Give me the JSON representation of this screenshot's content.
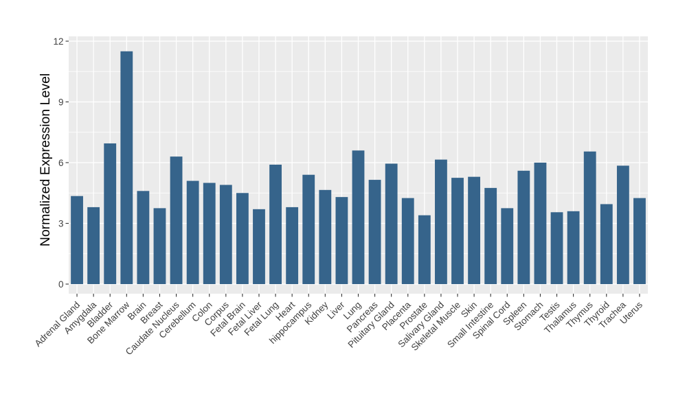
{
  "figure": {
    "background": "#FFFFFF"
  },
  "chart_data": {
    "type": "bar",
    "title": "",
    "xlabel": "",
    "ylabel": "Normalized Expression Level",
    "categories": [
      "Adrenal Gland",
      "Amygdala",
      "Bladder",
      "Bone Marrow",
      "Brain",
      "Breast",
      "Caudate Nucleus",
      "Cerebellum",
      "Colon",
      "Corpus",
      "Fetal Brain",
      "Fetal Liver",
      "Fetal Lung",
      "Heart",
      "hippocampus",
      "Kidney",
      "Liver",
      "Lung",
      "Pancreas",
      "Pituitary Gland",
      "Placenta",
      "Prostate",
      "Salivary Gland",
      "Skeletal Muscle",
      "Skin",
      "Small Intestine",
      "Spinal Cord",
      "Spleen",
      "Stomach",
      "Testis",
      "Thalamus",
      "Thymus",
      "Thyroid",
      "Trachea",
      "Uterus"
    ],
    "values": [
      4.35,
      3.8,
      6.95,
      11.5,
      4.6,
      3.75,
      6.3,
      5.1,
      5.0,
      4.9,
      4.5,
      3.7,
      5.9,
      3.8,
      5.4,
      4.65,
      4.3,
      6.6,
      5.15,
      5.95,
      4.25,
      3.4,
      6.15,
      5.25,
      5.3,
      4.75,
      3.75,
      5.6,
      6.0,
      3.55,
      3.6,
      6.55,
      3.95,
      5.85,
      4.25
    ],
    "yticks": [
      0,
      3,
      6,
      9,
      12
    ],
    "yticks_minor": [
      1.5,
      4.5,
      7.5,
      10.5
    ],
    "ylim": [
      -0.47,
      12.24
    ],
    "grid": "on",
    "legend": "none",
    "xtick_rotation_deg": -45,
    "colors": {
      "bar": "#36648B",
      "panel": "#EBEBEB",
      "grid": "#FFFFFF",
      "tick": "#333333",
      "tick_label": "#404040",
      "axis_title": "#000000"
    }
  }
}
